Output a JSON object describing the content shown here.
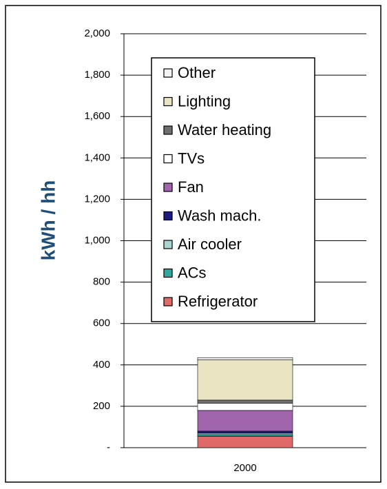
{
  "chart_data": {
    "type": "stacked_bar",
    "y_label": "kWh / hh",
    "categories": [
      "2000"
    ],
    "ylim": [
      0,
      2000
    ],
    "yticks": [
      {
        "value": 0,
        "label": "-"
      },
      200,
      400,
      600,
      800,
      {
        "value": 1000,
        "label": "1,000"
      },
      {
        "value": 1200,
        "label": "1,200"
      },
      {
        "value": 1400,
        "label": "1,400"
      },
      {
        "value": 1600,
        "label": "1,600"
      },
      {
        "value": 1800,
        "label": "1,800"
      },
      {
        "value": 2000,
        "label": "2,000"
      }
    ],
    "grid": true,
    "series": [
      {
        "name": "Refrigerator",
        "color": "#e06a6a",
        "values": [
          55
        ]
      },
      {
        "name": "ACs",
        "color": "#2fa8a0",
        "values": [
          8
        ]
      },
      {
        "name": "Air cooler",
        "color": "#a9d6d1",
        "values": [
          7
        ]
      },
      {
        "name": "Wash mach.",
        "color": "#1c1c80",
        "values": [
          10
        ]
      },
      {
        "name": "Fan",
        "color": "#a065ac",
        "values": [
          100
        ]
      },
      {
        "name": "TVs",
        "color": "#ffffff",
        "values": [
          35
        ]
      },
      {
        "name": "Water heating",
        "color": "#6e6e6e",
        "values": [
          15
        ]
      },
      {
        "name": "Lighting",
        "color": "#e9e5c2",
        "values": [
          195
        ]
      },
      {
        "name": "Other",
        "color": "#f4f4f4",
        "values": [
          10
        ]
      }
    ]
  }
}
